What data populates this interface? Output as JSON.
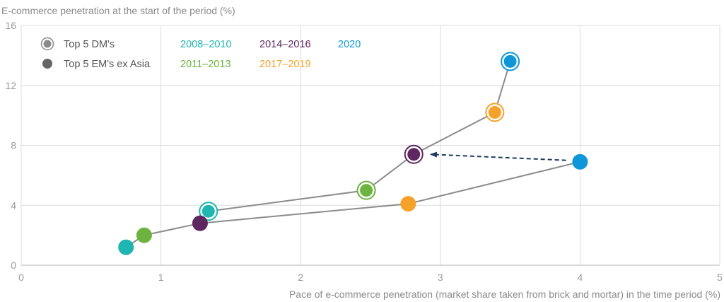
{
  "chart_data": {
    "type": "scatter",
    "ylabel": "E-commerce penetration at the start of the period (%)",
    "xlabel": "Pace of e-commerce penetration (market share taken from brick and mortar) in the time period (%)",
    "xlim": [
      0,
      5
    ],
    "ylim": [
      0,
      16
    ],
    "x_ticks": [
      "0",
      "1",
      "2",
      "3",
      "4",
      "5"
    ],
    "y_ticks": [
      "0",
      "4",
      "8",
      "12",
      "16"
    ],
    "grid": true,
    "legend_placement": "top-left",
    "marker_legend": [
      {
        "label": "Top 5 DM's",
        "marker": "ringed"
      },
      {
        "label": "Top 5 EM's ex Asia",
        "marker": "solid"
      }
    ],
    "period_legend": [
      {
        "label": "2008–2010",
        "color": "#1fb5b0"
      },
      {
        "label": "2014–2016",
        "color": "#5e2760"
      },
      {
        "label": "2020",
        "color": "#0e97d8"
      },
      {
        "label": "2011–2013",
        "color": "#6cb33f"
      },
      {
        "label": "2017–2019",
        "color": "#f6a12a"
      }
    ],
    "series": [
      {
        "name": "Top 5 DM's",
        "marker": "ringed",
        "points": [
          {
            "x": 1.34,
            "y": 3.6,
            "period": "2008–2010",
            "color": "#1fb5b0"
          },
          {
            "x": 2.47,
            "y": 5.0,
            "period": "2011–2013",
            "color": "#6cb33f"
          },
          {
            "x": 2.81,
            "y": 7.4,
            "period": "2014–2016",
            "color": "#5e2760"
          },
          {
            "x": 3.39,
            "y": 10.2,
            "period": "2017–2019",
            "color": "#f6a12a"
          },
          {
            "x": 3.5,
            "y": 13.6,
            "period": "2020",
            "color": "#0e97d8"
          }
        ]
      },
      {
        "name": "Top 5 EM's ex Asia",
        "marker": "solid",
        "points": [
          {
            "x": 0.75,
            "y": 1.2,
            "period": "2008–2010",
            "color": "#1fb5b0"
          },
          {
            "x": 0.88,
            "y": 2.0,
            "period": "2011–2013",
            "color": "#6cb33f"
          },
          {
            "x": 1.28,
            "y": 2.8,
            "period": "2014–2016",
            "color": "#5e2760"
          },
          {
            "x": 2.77,
            "y": 4.1,
            "period": "2017–2019",
            "color": "#f6a12a"
          },
          {
            "x": 4.0,
            "y": 6.9,
            "period": "2020",
            "color": "#0e97d8"
          }
        ]
      }
    ],
    "annotations": [
      {
        "type": "dashed-arrow",
        "from": {
          "x": 3.9,
          "y": 7.0
        },
        "to": {
          "x": 2.93,
          "y": 7.4
        },
        "color": "#1f3a5f"
      }
    ]
  }
}
